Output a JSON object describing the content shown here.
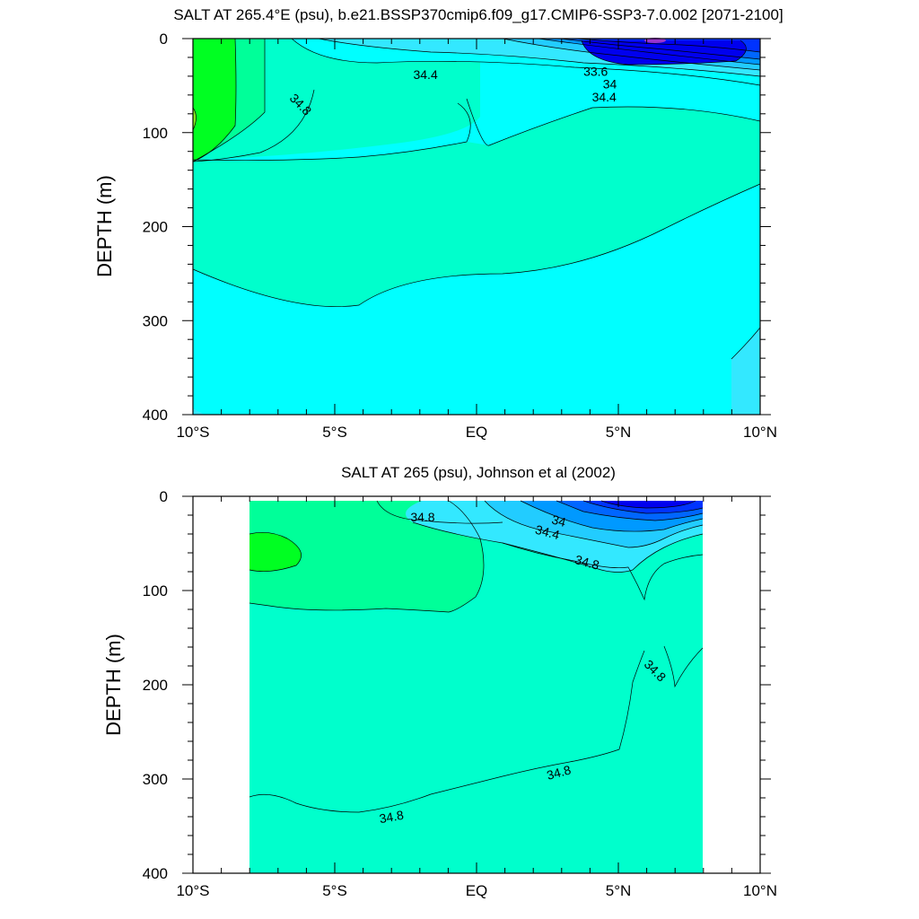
{
  "colors": {
    "s_34_8_35_0": "#00ffcc",
    "s_34_6_34_8": "#00ffff",
    "s_34_4_34_6": "#33e8ff",
    "s_35_0_35_2": "#00ff99",
    "s_35_2_35_4": "#00ff22",
    "s_35_4_plus": "#88ee22",
    "fresh_1": "#22ccff",
    "fresh_2": "#0099ff",
    "fresh_3": "#0066ff",
    "fresh_4": "#0033ff",
    "fresh_5": "#0000ee",
    "fresh_min": "#9933cc"
  },
  "chart_data": [
    {
      "type": "contour",
      "title": "SALT AT 265.4°E (psu), b.e21.BSSP370cmip6.f09_g17.CMIP6-SSP3-7.0.002 [2071-2100]",
      "xlabel": "",
      "ylabel": "DEPTH (m)",
      "xlim": [
        -10,
        10
      ],
      "ylim": [
        400,
        0
      ],
      "x_ticks": [
        -10,
        -5,
        0,
        5,
        10
      ],
      "x_tick_labels": [
        "10°S",
        "5°S",
        "EQ",
        "5°N",
        "10°N"
      ],
      "y_ticks": [
        0,
        100,
        200,
        300,
        400
      ],
      "y_tick_labels": [
        "0",
        "100",
        "200",
        "300",
        "400"
      ],
      "contour_interval": 0.2,
      "contour_labels": [
        {
          "text": "34.4",
          "lat": -1.8,
          "depth": 38
        },
        {
          "text": "34.8",
          "lat": -6.2,
          "depth": 70,
          "angle": 45
        },
        {
          "text": "33.6",
          "lat": 4.2,
          "depth": 35
        },
        {
          "text": "34",
          "lat": 4.7,
          "depth": 48
        },
        {
          "text": "34.4",
          "lat": 4.5,
          "depth": 62
        }
      ]
    },
    {
      "type": "contour",
      "title": "SALT AT 265 (psu), Johnson et al (2002)",
      "xlabel": "",
      "ylabel": "DEPTH (m)",
      "xlim": [
        -10,
        10
      ],
      "ylim": [
        400,
        0
      ],
      "data_lat_range": [
        -8,
        8
      ],
      "x_ticks": [
        -10,
        -5,
        0,
        5,
        10
      ],
      "x_tick_labels": [
        "10°S",
        "5°S",
        "EQ",
        "5°N",
        "10°N"
      ],
      "y_ticks": [
        0,
        100,
        200,
        300,
        400
      ],
      "y_tick_labels": [
        "0",
        "100",
        "200",
        "300",
        "400"
      ],
      "contour_interval": 0.2,
      "contour_labels": [
        {
          "text": "34.8",
          "lat": -1.9,
          "depth": 22
        },
        {
          "text": "34",
          "lat": 2.9,
          "depth": 26,
          "angle": 15
        },
        {
          "text": "34.4",
          "lat": 2.5,
          "depth": 38,
          "angle": 15
        },
        {
          "text": "34.8",
          "lat": 3.9,
          "depth": 70,
          "angle": 15
        },
        {
          "text": "34.8",
          "lat": 6.3,
          "depth": 185,
          "angle": 45
        },
        {
          "text": "34.8",
          "lat": 2.9,
          "depth": 293,
          "angle": -15
        },
        {
          "text": "34.8",
          "lat": -3.0,
          "depth": 340,
          "angle": -10
        }
      ]
    }
  ]
}
